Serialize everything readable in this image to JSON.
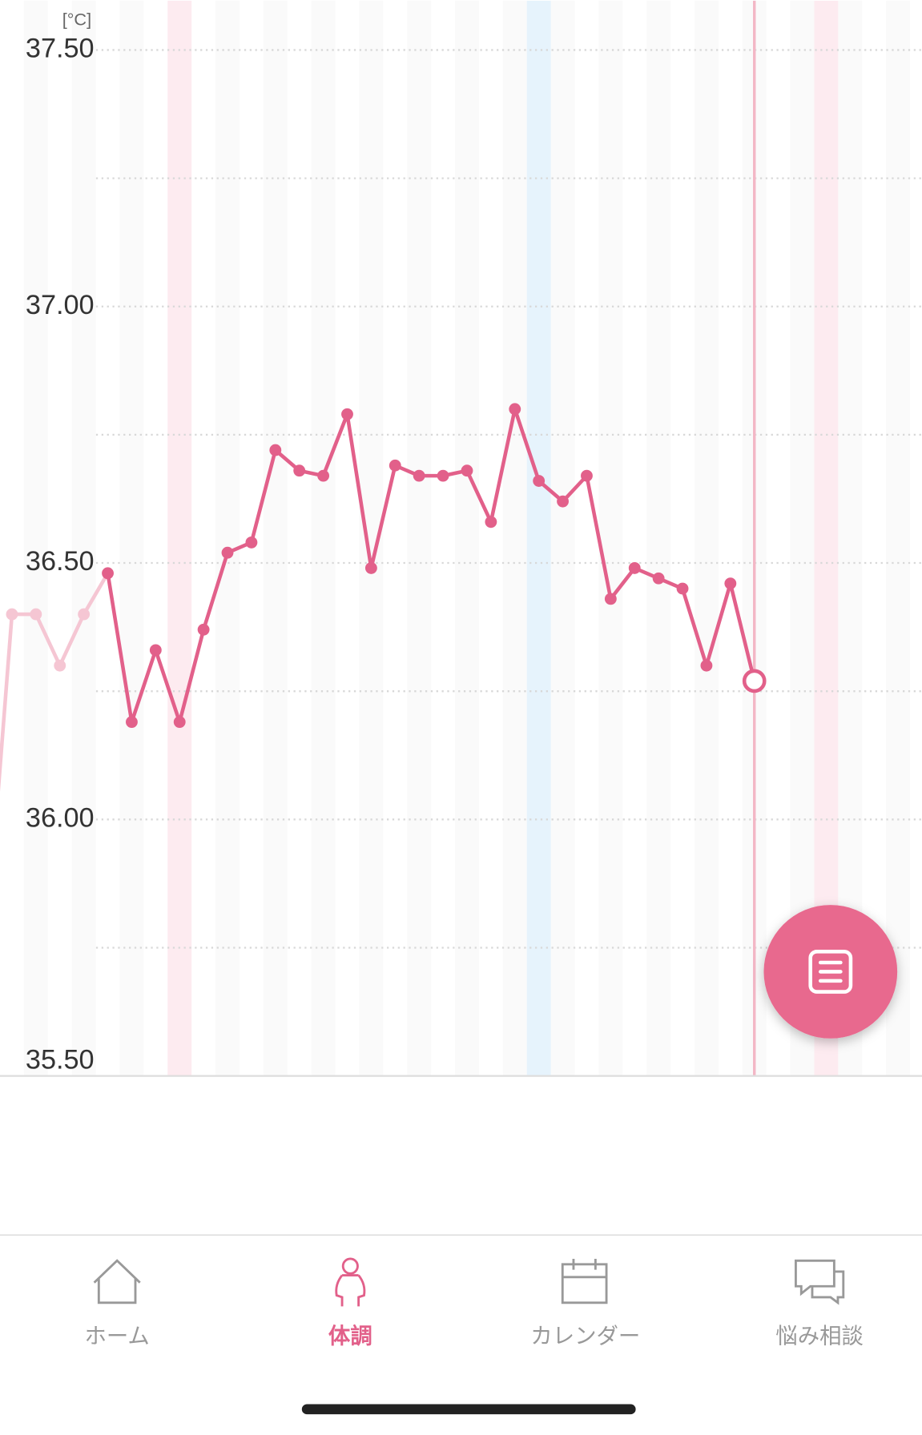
{
  "unit_label": "[°C]",
  "chart_data": {
    "type": "line",
    "ylim": [
      35.5,
      37.5
    ],
    "yticks": [
      {
        "value": 35.5,
        "label": "35.50"
      },
      {
        "value": 36,
        "label": "36.00"
      },
      {
        "value": 36.5,
        "label": "36.50"
      },
      {
        "value": 37,
        "label": "37.00"
      },
      {
        "value": 37.5,
        "label": "37.50"
      }
    ],
    "minor_yticks": [
      35.75,
      36.25,
      36.75,
      37.25
    ],
    "grid": true,
    "xlim": [
      0.5,
      39
    ],
    "highlight_days": [
      {
        "x": 8,
        "color": "#fdebf0"
      },
      {
        "x": 23,
        "color": "#e6f3fc"
      },
      {
        "x": 35,
        "color": "#fdebf0"
      }
    ],
    "today_x": 32,
    "series": [
      {
        "color": "#f5c6d3",
        "x": [
          0,
          1,
          2,
          3,
          4
        ],
        "values": [
          35.8,
          36.4,
          36.4,
          36.3,
          36.4
        ]
      },
      {
        "color": "#e2608a",
        "x": [
          5,
          6,
          7,
          8,
          9,
          10,
          11,
          12,
          13,
          14,
          15,
          16,
          17,
          18,
          19,
          20,
          21,
          22,
          23,
          24,
          25,
          26,
          27,
          28,
          29,
          30,
          31,
          32
        ],
        "values": [
          36.48,
          36.19,
          36.33,
          36.19,
          36.37,
          36.52,
          36.54,
          36.72,
          36.68,
          36.67,
          36.79,
          36.49,
          36.69,
          36.67,
          36.67,
          36.68,
          36.58,
          36.8,
          36.66,
          36.62,
          36.67,
          36.43,
          36.49,
          36.47,
          36.45,
          36.3,
          36.46,
          36.27
        ]
      }
    ]
  },
  "nav": {
    "active": 1,
    "items": [
      {
        "label": "ホーム"
      },
      {
        "label": "体調"
      },
      {
        "label": "カレンダー"
      },
      {
        "label": "悩み相談"
      }
    ]
  }
}
